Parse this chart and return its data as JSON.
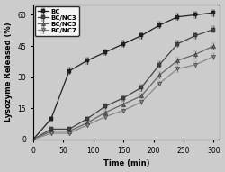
{
  "title": "",
  "xlabel": "Time (min)",
  "ylabel": "Lysozyme Released (%)",
  "xlim": [
    0,
    310
  ],
  "ylim": [
    0,
    65
  ],
  "xticks": [
    0,
    50,
    100,
    150,
    200,
    250,
    300
  ],
  "yticks": [
    0,
    15,
    30,
    45,
    60
  ],
  "series": [
    {
      "label": "BC",
      "marker": "s",
      "color": "#222222",
      "x": [
        0,
        30,
        60,
        90,
        120,
        150,
        180,
        210,
        240,
        270,
        300
      ],
      "y": [
        0,
        10,
        33,
        38,
        42,
        46,
        50,
        55,
        59,
        60,
        61
      ],
      "yerr": [
        0,
        1.0,
        1.5,
        1.5,
        1.5,
        1.5,
        1.5,
        1.5,
        1.5,
        1.5,
        1.5
      ]
    },
    {
      "label": "BC/NC3",
      "marker": "s",
      "color": "#444444",
      "x": [
        0,
        30,
        60,
        90,
        120,
        150,
        180,
        210,
        240,
        270,
        300
      ],
      "y": [
        0,
        5,
        5,
        10,
        16,
        20,
        25,
        36,
        46,
        50,
        53
      ],
      "yerr": [
        0,
        0.8,
        0.8,
        1.0,
        1.2,
        1.2,
        1.5,
        1.5,
        1.5,
        1.5,
        1.5
      ]
    },
    {
      "label": "BC/NC5",
      "marker": "^",
      "color": "#666666",
      "x": [
        0,
        30,
        60,
        90,
        120,
        150,
        180,
        210,
        240,
        270,
        300
      ],
      "y": [
        0,
        4,
        4,
        8,
        13,
        17,
        21,
        31,
        38,
        41,
        45
      ],
      "yerr": [
        0,
        0.8,
        0.8,
        1.0,
        1.0,
        1.2,
        1.2,
        1.5,
        1.5,
        1.5,
        1.5
      ]
    },
    {
      "label": "BC/NC7",
      "marker": "v",
      "color": "#888888",
      "x": [
        0,
        30,
        60,
        90,
        120,
        150,
        180,
        210,
        240,
        270,
        300
      ],
      "y": [
        0,
        3,
        3,
        7,
        11,
        14,
        18,
        27,
        34,
        36,
        40
      ],
      "yerr": [
        0,
        0.7,
        0.7,
        0.9,
        1.0,
        1.0,
        1.2,
        1.2,
        1.5,
        1.5,
        1.5
      ]
    }
  ],
  "bg_color": "#cccccc",
  "legend_fontsize": 5.0,
  "axis_fontsize": 6.0,
  "tick_fontsize": 5.5,
  "linewidth": 0.9,
  "markersize": 3.0
}
